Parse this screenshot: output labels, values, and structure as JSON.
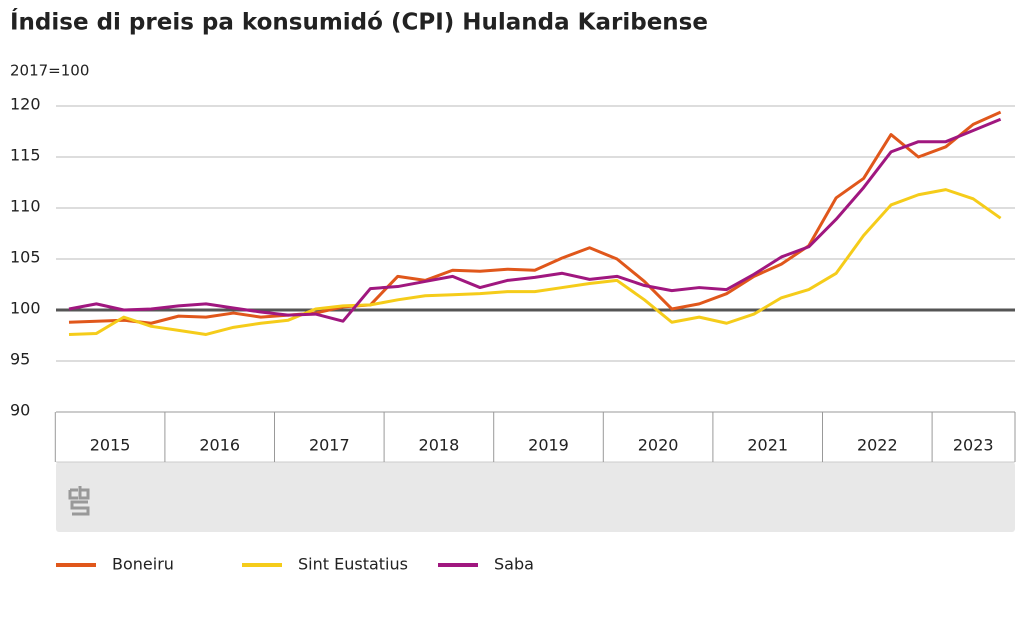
{
  "chart_data": {
    "type": "line",
    "title": "Índise di preis pa konsumidó (CPI) Hulanda Karibense",
    "subtitle": "2017=100",
    "categories": [
      "2015",
      null,
      null,
      null,
      "2016",
      null,
      null,
      null,
      "2017",
      null,
      null,
      null,
      "2018",
      null,
      null,
      null,
      "2019",
      null,
      null,
      null,
      "2020",
      null,
      null,
      null,
      "2021",
      null,
      null,
      null,
      "2022",
      null,
      null,
      null,
      "2023",
      null,
      null
    ],
    "series": [
      {
        "name": "Boneiru",
        "color": "#e0571b",
        "values": [
          98.8,
          98.9,
          99.0,
          98.7,
          99.4,
          99.3,
          99.7,
          99.3,
          99.5,
          99.7,
          100.3,
          100.5,
          103.3,
          102.9,
          103.9,
          103.8,
          104.0,
          103.9,
          105.1,
          106.1,
          105.0,
          102.8,
          100.1,
          100.6,
          101.6,
          103.3,
          104.5,
          106.3,
          111.0,
          112.9,
          117.2,
          115.0,
          116.0,
          118.2,
          119.4
        ]
      },
      {
        "name": "Sint Eustatius",
        "color": "#f5cc1a",
        "values": [
          97.6,
          97.7,
          99.3,
          98.4,
          98.0,
          97.6,
          98.3,
          98.7,
          99.0,
          100.1,
          100.4,
          100.5,
          101.0,
          101.4,
          101.5,
          101.6,
          101.8,
          101.8,
          102.2,
          102.6,
          102.9,
          101.0,
          98.8,
          99.3,
          98.7,
          99.6,
          101.2,
          102.0,
          103.6,
          107.3,
          110.3,
          111.3,
          111.8,
          110.9,
          109.0
        ]
      },
      {
        "name": "Saba",
        "color": "#a0177f",
        "values": [
          100.1,
          100.6,
          100.0,
          100.1,
          100.4,
          100.6,
          100.2,
          99.8,
          99.5,
          99.6,
          98.9,
          102.1,
          102.3,
          102.8,
          103.3,
          102.2,
          102.9,
          103.2,
          103.6,
          103.0,
          103.3,
          102.4,
          101.9,
          102.2,
          102.0,
          103.5,
          105.2,
          106.2,
          108.9,
          112.0,
          115.5,
          116.5,
          116.5,
          117.6,
          118.7
        ]
      }
    ],
    "ylim": [
      90,
      120
    ],
    "yticks": [
      90,
      95,
      100,
      105,
      110,
      115,
      120
    ],
    "grid": true,
    "baseline": 100
  }
}
